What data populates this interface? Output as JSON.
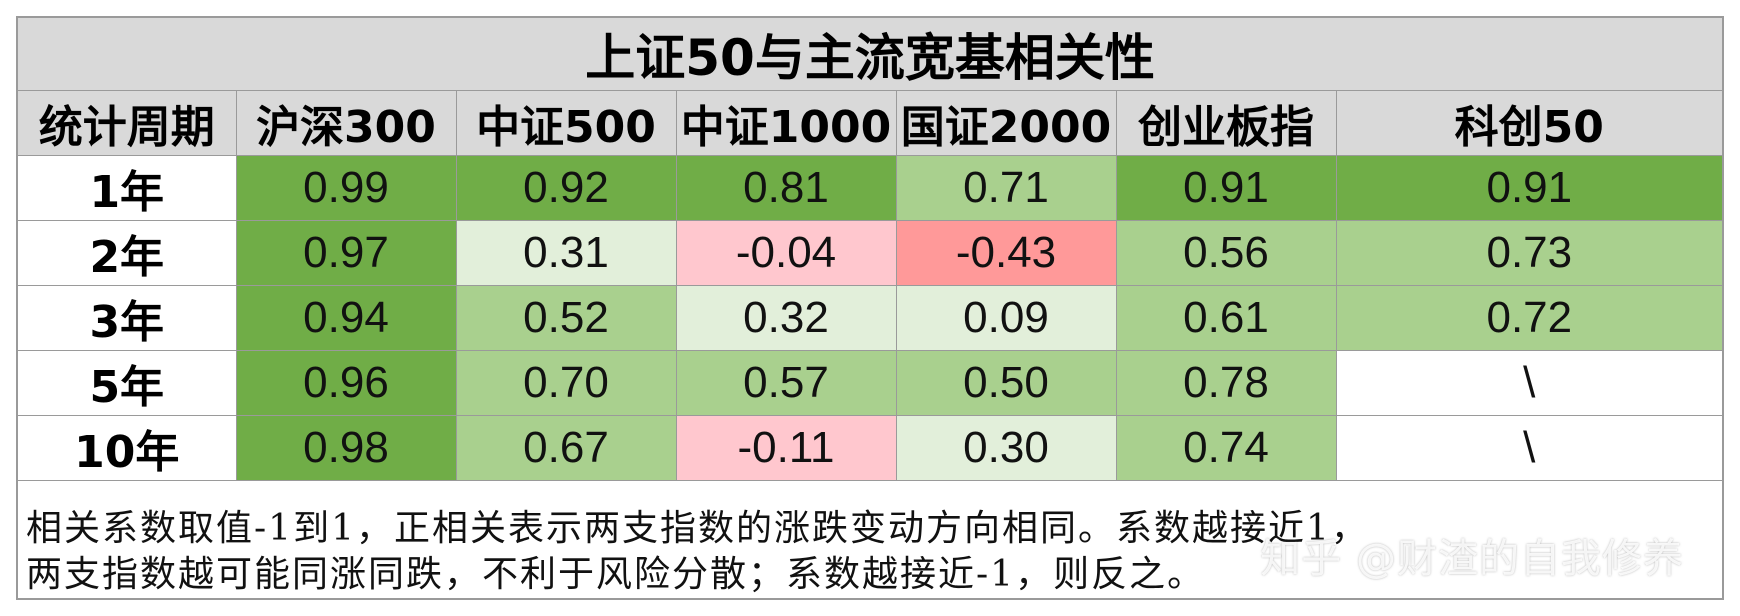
{
  "title": "上证50与主流宽基相关性",
  "header": [
    "统计周期",
    "沪深300",
    "中证500",
    "中证1000",
    "国证2000",
    "创业板指",
    "科创50"
  ],
  "rows": [
    {
      "label": "1年",
      "values": [
        "0.99",
        "0.92",
        "0.81",
        "0.71",
        "0.91",
        "0.91"
      ]
    },
    {
      "label": "2年",
      "values": [
        "0.97",
        "0.31",
        "-0.04",
        "-0.43",
        "0.56",
        "0.73"
      ]
    },
    {
      "label": "3年",
      "values": [
        "0.94",
        "0.52",
        "0.32",
        "0.09",
        "0.61",
        "0.72"
      ]
    },
    {
      "label": "5年",
      "values": [
        "0.96",
        "0.70",
        "0.57",
        "0.50",
        "0.78",
        "\\"
      ]
    },
    {
      "label": "10年",
      "values": [
        "0.98",
        "0.67",
        "-0.11",
        "0.30",
        "0.74",
        "\\"
      ]
    }
  ],
  "cell_colors": [
    [
      "#70ad47",
      "#70ad47",
      "#70ad47",
      "#a9d08e",
      "#70ad47",
      "#70ad47"
    ],
    [
      "#70ad47",
      "#e2efda",
      "#ffc7ce",
      "#ff9999",
      "#a9d08e",
      "#a9d08e"
    ],
    [
      "#70ad47",
      "#a9d08e",
      "#e2efda",
      "#e2efda",
      "#a9d08e",
      "#a9d08e"
    ],
    [
      "#70ad47",
      "#a9d08e",
      "#a9d08e",
      "#a9d08e",
      "#a9d08e",
      "#ffffff"
    ],
    [
      "#70ad47",
      "#a9d08e",
      "#ffc7ce",
      "#e2efda",
      "#a9d08e",
      "#ffffff"
    ]
  ],
  "note": {
    "line1": "相关系数取值-1到1，正相关表示两支指数的涨跌变动方向相同。系数越接近1，",
    "line2": "两支指数越可能同涨同跌，不利于风险分散；系数越接近-1，则反之。"
  },
  "watermark": "知乎 @财渣的自我修养"
}
